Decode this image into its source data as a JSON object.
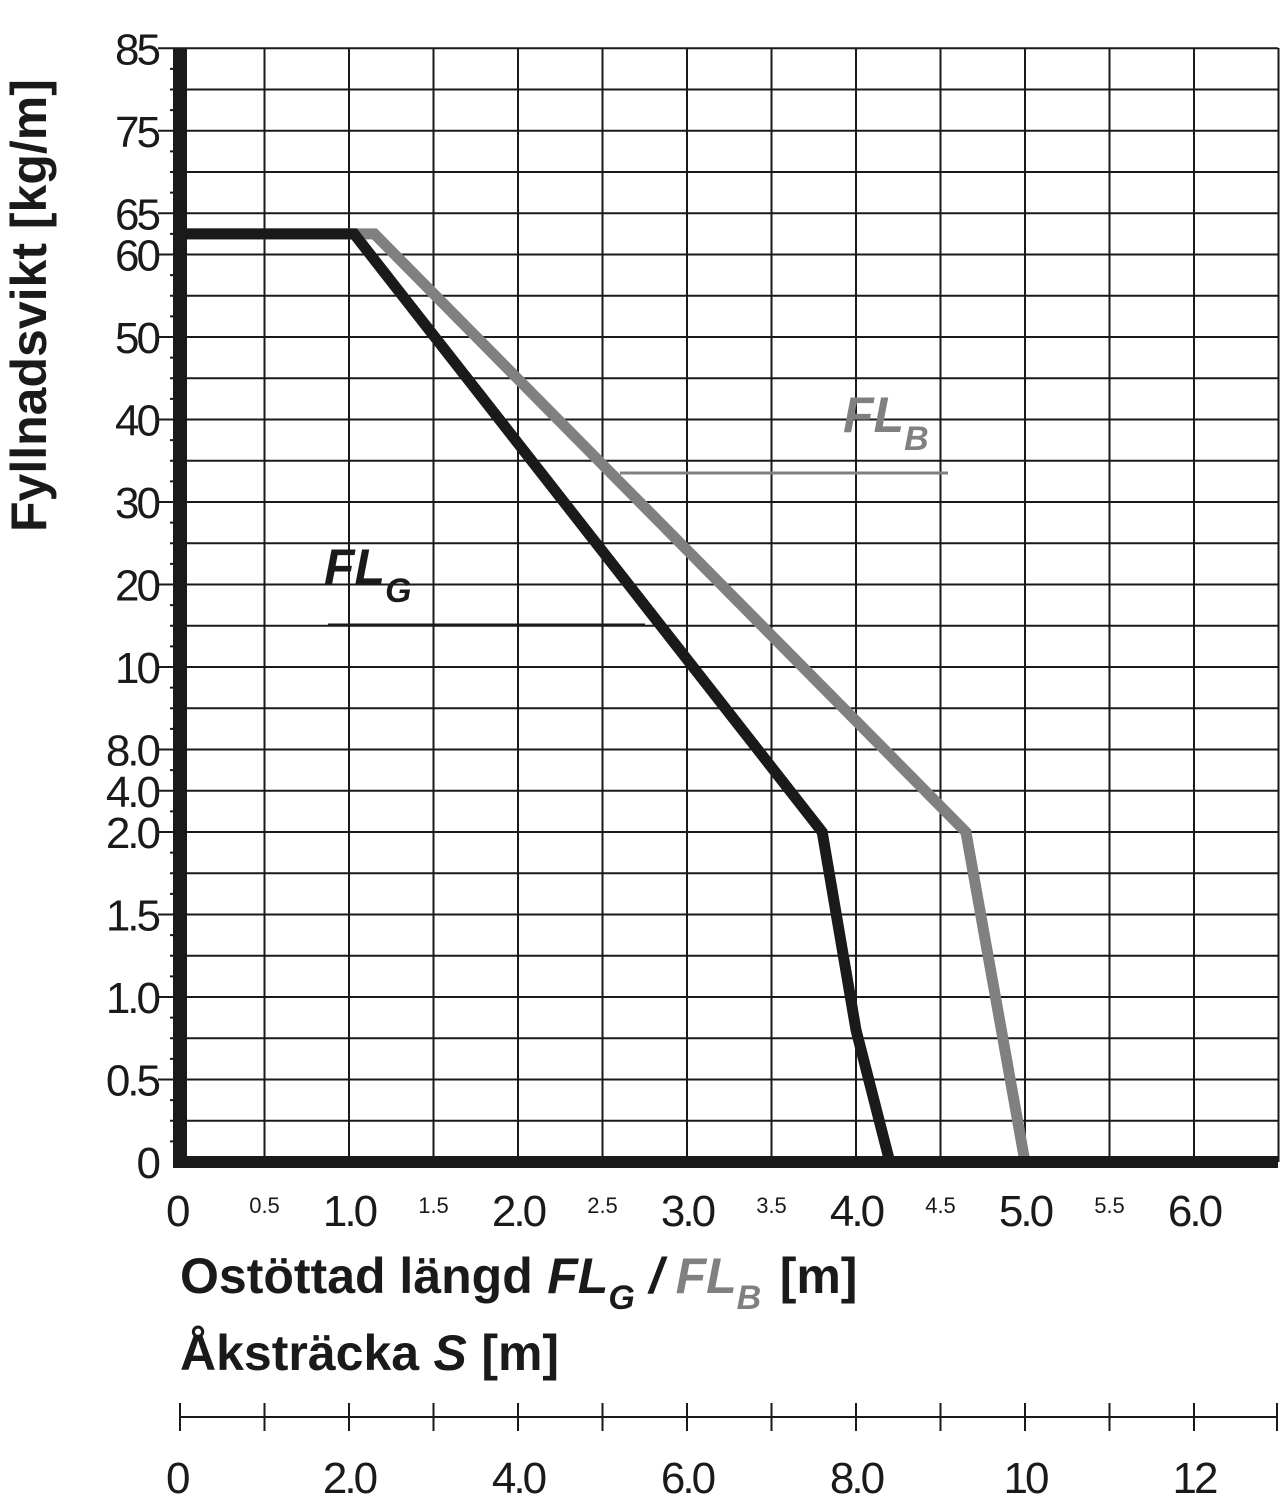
{
  "chart_data": {
    "type": "line",
    "title": "",
    "ylabel": "Fyllnadsvikt [kg/m]",
    "xlabel": {
      "line1": {
        "prefix": "Ostöttad längd",
        "fl": "FL",
        "g": "G",
        "slash": "/",
        "b": "B",
        "unit": "[m]"
      },
      "line2": {
        "prefix": "Åksträcka",
        "s": "S",
        "unit": "[m]"
      }
    },
    "y_tick_labels": [
      "0",
      "0.5",
      "1.0",
      "1.5",
      "2.0",
      "4.0",
      "8.0",
      "10",
      "20",
      "30",
      "40",
      "50",
      "60",
      "65",
      "75",
      "85"
    ],
    "x_tick_labels_major": [
      "0",
      "1.0",
      "2.0",
      "3.0",
      "4.0",
      "5.0",
      "6.0"
    ],
    "x_tick_labels_minor": [
      "0.5",
      "1.5",
      "2.5",
      "3.5",
      "4.5",
      "5.5"
    ],
    "x_major_values": [
      0,
      1,
      2,
      3,
      4,
      5,
      6
    ],
    "x_minor_values": [
      0.5,
      1.5,
      2.5,
      3.5,
      4.5,
      5.5
    ],
    "s_axis_labels": [
      "0",
      "2.0",
      "4.0",
      "6.0",
      "8.0",
      "10",
      "12"
    ],
    "s_axis_values": [
      0,
      2,
      4,
      6,
      8,
      10,
      12
    ],
    "xlim": [
      0,
      6.5
    ],
    "s_lim": [
      0,
      13
    ],
    "series": [
      {
        "name": "FL_G",
        "label_main": "FL",
        "label_sub": "G",
        "color": "#1a1a1a",
        "points": [
          [
            0,
            62.5
          ],
          [
            1.03,
            62.5
          ],
          [
            3.8,
            2.0
          ],
          [
            4.0,
            0.8
          ],
          [
            4.2,
            0
          ]
        ]
      },
      {
        "name": "FL_B",
        "label_main": "FL",
        "label_sub": "B",
        "color": "#808080",
        "points": [
          [
            0,
            62.5
          ],
          [
            1.15,
            62.5
          ],
          [
            4.65,
            2.0
          ],
          [
            5.0,
            0
          ]
        ]
      }
    ]
  }
}
